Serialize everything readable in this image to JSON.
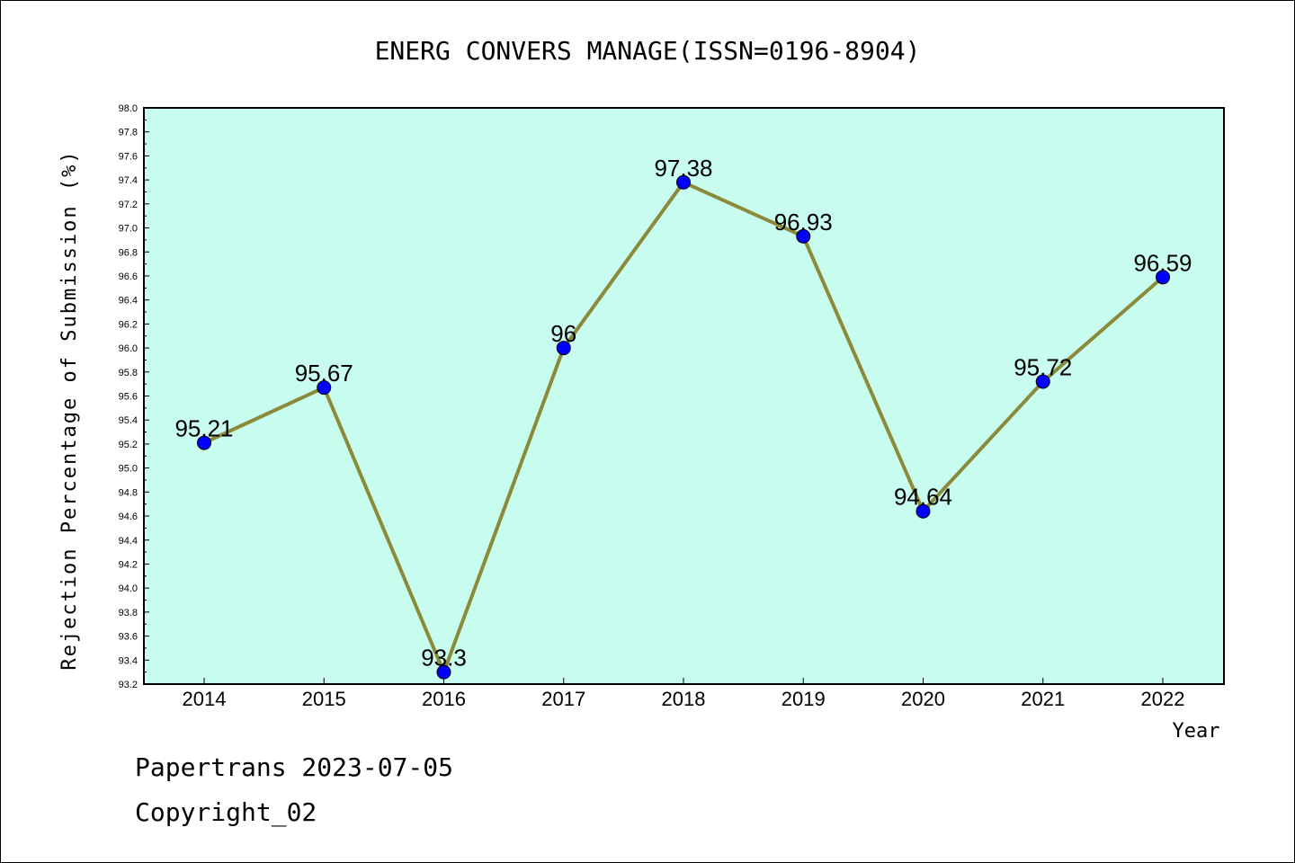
{
  "chart_data": {
    "type": "line",
    "title": "ENERG CONVERS MANAGE(ISSN=0196-8904)",
    "xlabel": "Year",
    "ylabel": "Rejection Percentage of Submission (%)",
    "categories": [
      "2014",
      "2015",
      "2016",
      "2017",
      "2018",
      "2019",
      "2020",
      "2021",
      "2022"
    ],
    "values": [
      95.21,
      95.67,
      93.3,
      96,
      97.38,
      96.93,
      94.64,
      95.72,
      96.59
    ],
    "data_labels": [
      "95.21",
      "95.67",
      "93.3",
      "96",
      "97.38",
      "96.93",
      "94.64",
      "95.72",
      "96.59"
    ],
    "ylim": [
      93.2,
      98.0
    ],
    "yticks": [
      "93.2",
      "93.4",
      "93.6",
      "93.8",
      "94.0",
      "94.2",
      "94.4",
      "94.6",
      "94.8",
      "95.0",
      "95.2",
      "95.4",
      "95.6",
      "95.8",
      "96.0",
      "96.2",
      "96.4",
      "96.6",
      "96.8",
      "97.0",
      "97.2",
      "97.4",
      "97.6",
      "97.8",
      "98.0"
    ],
    "grid": false,
    "colors": {
      "plot_background": "#c8fcee",
      "line": "#8b8a3b",
      "marker": "#0000ff"
    }
  },
  "footer": {
    "line1": "Papertrans 2023-07-05",
    "line2": "Copyright_02"
  }
}
